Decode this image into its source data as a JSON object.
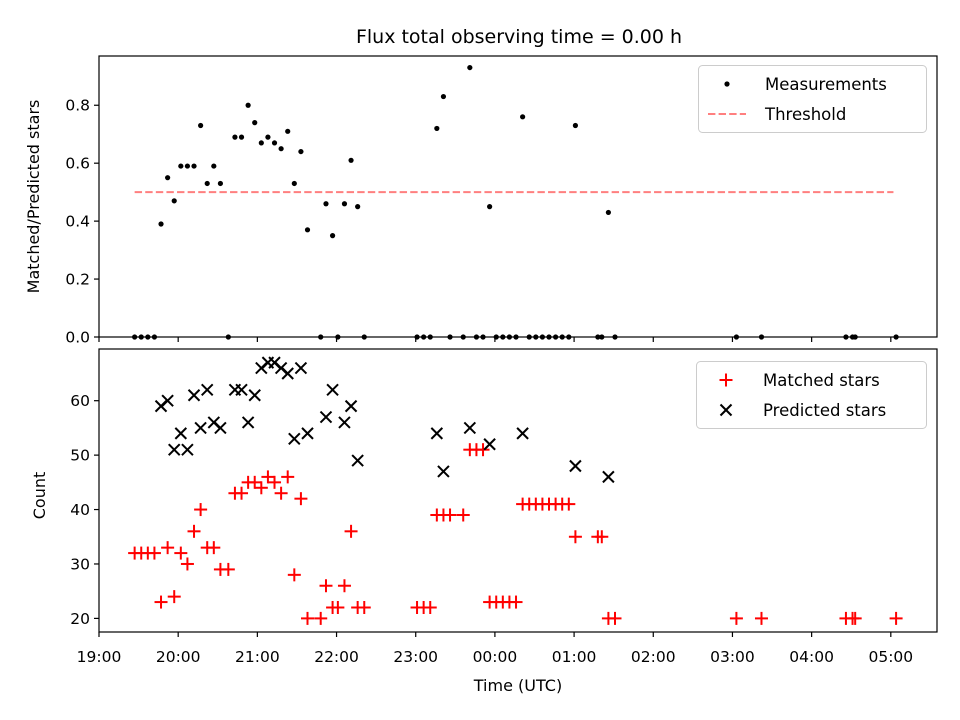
{
  "chart_data": [
    {
      "type": "scatter",
      "title": "Flux total observing time = 0.00 h",
      "ylabel": "Matched/Predicted stars",
      "xlim": [
        "19:00",
        "05:35"
      ],
      "ylim": [
        0,
        0.97
      ],
      "yticks": [
        "0.0",
        "0.2",
        "0.4",
        "0.6",
        "0.8"
      ],
      "legend_position": "top-right",
      "legend": [
        {
          "label": "Measurements",
          "marker": "dot",
          "color": "#000000"
        },
        {
          "label": "Threshold",
          "marker": "dashed-line",
          "color": "#ff7f7f"
        }
      ],
      "threshold": {
        "name": "Threshold",
        "y": 0.5,
        "x_start": "19:27",
        "x_end": "05:02",
        "color": "#ff7f7f",
        "style": "dashed"
      },
      "series": [
        {
          "name": "Measurements",
          "color": "#000000",
          "marker": "dot",
          "points": [
            [
              "19:27",
              0.0
            ],
            [
              "19:32",
              0.0
            ],
            [
              "19:37",
              0.0
            ],
            [
              "19:42",
              0.0
            ],
            [
              "19:47",
              0.39
            ],
            [
              "19:52",
              0.55
            ],
            [
              "19:57",
              0.47
            ],
            [
              "20:02",
              0.59
            ],
            [
              "20:07",
              0.59
            ],
            [
              "20:12",
              0.59
            ],
            [
              "20:17",
              0.73
            ],
            [
              "20:22",
              0.53
            ],
            [
              "20:27",
              0.59
            ],
            [
              "20:32",
              0.53
            ],
            [
              "20:38",
              0.0
            ],
            [
              "20:43",
              0.69
            ],
            [
              "20:48",
              0.69
            ],
            [
              "20:53",
              0.8
            ],
            [
              "20:58",
              0.74
            ],
            [
              "21:03",
              0.67
            ],
            [
              "21:08",
              0.69
            ],
            [
              "21:13",
              0.67
            ],
            [
              "21:18",
              0.65
            ],
            [
              "21:23",
              0.71
            ],
            [
              "21:28",
              0.53
            ],
            [
              "21:33",
              0.64
            ],
            [
              "21:38",
              0.37
            ],
            [
              "21:48",
              0.0
            ],
            [
              "21:52",
              0.46
            ],
            [
              "21:57",
              0.35
            ],
            [
              "22:01",
              0.0
            ],
            [
              "22:06",
              0.46
            ],
            [
              "22:11",
              0.61
            ],
            [
              "22:16",
              0.45
            ],
            [
              "22:21",
              0.0
            ],
            [
              "23:01",
              0.0
            ],
            [
              "23:06",
              0.0
            ],
            [
              "23:11",
              0.0
            ],
            [
              "23:16",
              0.72
            ],
            [
              "23:21",
              0.83
            ],
            [
              "23:26",
              0.0
            ],
            [
              "23:36",
              0.0
            ],
            [
              "23:41",
              0.93
            ],
            [
              "23:46",
              0.0
            ],
            [
              "23:51",
              0.0
            ],
            [
              "23:56",
              0.45
            ],
            [
              "00:01",
              0.0
            ],
            [
              "00:06",
              0.0
            ],
            [
              "00:11",
              0.0
            ],
            [
              "00:16",
              0.0
            ],
            [
              "00:21",
              0.76
            ],
            [
              "00:26",
              0.0
            ],
            [
              "00:31",
              0.0
            ],
            [
              "00:36",
              0.0
            ],
            [
              "00:41",
              0.0
            ],
            [
              "00:46",
              0.0
            ],
            [
              "00:51",
              0.0
            ],
            [
              "00:56",
              0.0
            ],
            [
              "01:01",
              0.73
            ],
            [
              "01:18",
              0.0
            ],
            [
              "01:21",
              0.0
            ],
            [
              "01:26",
              0.43
            ],
            [
              "01:31",
              0.0
            ],
            [
              "03:03",
              0.0
            ],
            [
              "03:22",
              0.0
            ],
            [
              "04:26",
              0.0
            ],
            [
              "04:31",
              0.0
            ],
            [
              "04:33",
              0.0
            ],
            [
              "05:04",
              0.0
            ]
          ]
        }
      ]
    },
    {
      "type": "scatter",
      "xlabel": "Time (UTC)",
      "ylabel": "Count",
      "xlim": [
        "19:00",
        "05:35"
      ],
      "ylim": [
        17.5,
        69.5
      ],
      "xticks": [
        "19:00",
        "20:00",
        "21:00",
        "22:00",
        "23:00",
        "00:00",
        "01:00",
        "02:00",
        "03:00",
        "04:00",
        "05:00"
      ],
      "yticks": [
        "20",
        "30",
        "40",
        "50",
        "60"
      ],
      "legend_position": "top-right",
      "legend": [
        {
          "label": "Matched stars",
          "marker": "plus",
          "color": "#ff0000"
        },
        {
          "label": "Predicted stars",
          "marker": "x",
          "color": "#000000"
        }
      ],
      "series": [
        {
          "name": "Matched stars",
          "color": "#ff0000",
          "marker": "plus",
          "points": [
            [
              "19:27",
              32
            ],
            [
              "19:32",
              32
            ],
            [
              "19:37",
              32
            ],
            [
              "19:42",
              32
            ],
            [
              "19:47",
              23
            ],
            [
              "19:52",
              33
            ],
            [
              "19:57",
              24
            ],
            [
              "20:02",
              32
            ],
            [
              "20:07",
              30
            ],
            [
              "20:12",
              36
            ],
            [
              "20:17",
              40
            ],
            [
              "20:22",
              33
            ],
            [
              "20:27",
              33
            ],
            [
              "20:32",
              29
            ],
            [
              "20:38",
              29
            ],
            [
              "20:43",
              43
            ],
            [
              "20:48",
              43
            ],
            [
              "20:53",
              45
            ],
            [
              "20:58",
              45
            ],
            [
              "21:03",
              44
            ],
            [
              "21:08",
              46
            ],
            [
              "21:13",
              45
            ],
            [
              "21:18",
              43
            ],
            [
              "21:23",
              46
            ],
            [
              "21:28",
              28
            ],
            [
              "21:33",
              42
            ],
            [
              "21:38",
              20
            ],
            [
              "21:48",
              20
            ],
            [
              "21:52",
              26
            ],
            [
              "21:57",
              22
            ],
            [
              "22:01",
              22
            ],
            [
              "22:06",
              26
            ],
            [
              "22:11",
              36
            ],
            [
              "22:16",
              22
            ],
            [
              "22:21",
              22
            ],
            [
              "23:01",
              22
            ],
            [
              "23:06",
              22
            ],
            [
              "23:11",
              22
            ],
            [
              "23:16",
              39
            ],
            [
              "23:21",
              39
            ],
            [
              "23:26",
              39
            ],
            [
              "23:36",
              39
            ],
            [
              "23:41",
              51
            ],
            [
              "23:46",
              51
            ],
            [
              "23:51",
              51
            ],
            [
              "23:56",
              23
            ],
            [
              "00:01",
              23
            ],
            [
              "00:06",
              23
            ],
            [
              "00:11",
              23
            ],
            [
              "00:16",
              23
            ],
            [
              "00:21",
              41
            ],
            [
              "00:26",
              41
            ],
            [
              "00:31",
              41
            ],
            [
              "00:36",
              41
            ],
            [
              "00:41",
              41
            ],
            [
              "00:46",
              41
            ],
            [
              "00:51",
              41
            ],
            [
              "00:56",
              41
            ],
            [
              "01:01",
              35
            ],
            [
              "01:18",
              35
            ],
            [
              "01:21",
              35
            ],
            [
              "01:26",
              20
            ],
            [
              "01:31",
              20
            ],
            [
              "03:03",
              20
            ],
            [
              "03:22",
              20
            ],
            [
              "04:26",
              20
            ],
            [
              "04:31",
              20
            ],
            [
              "04:33",
              20
            ],
            [
              "05:04",
              20
            ]
          ]
        },
        {
          "name": "Predicted stars",
          "color": "#000000",
          "marker": "x",
          "points": [
            [
              "19:47",
              59
            ],
            [
              "19:52",
              60
            ],
            [
              "19:57",
              51
            ],
            [
              "20:02",
              54
            ],
            [
              "20:07",
              51
            ],
            [
              "20:12",
              61
            ],
            [
              "20:17",
              55
            ],
            [
              "20:22",
              62
            ],
            [
              "20:27",
              56
            ],
            [
              "20:32",
              55
            ],
            [
              "20:43",
              62
            ],
            [
              "20:48",
              62
            ],
            [
              "20:53",
              56
            ],
            [
              "20:58",
              61
            ],
            [
              "21:03",
              66
            ],
            [
              "21:08",
              67
            ],
            [
              "21:13",
              67
            ],
            [
              "21:18",
              66
            ],
            [
              "21:23",
              65
            ],
            [
              "21:28",
              53
            ],
            [
              "21:33",
              66
            ],
            [
              "21:38",
              54
            ],
            [
              "21:52",
              57
            ],
            [
              "21:57",
              62
            ],
            [
              "22:06",
              56
            ],
            [
              "22:11",
              59
            ],
            [
              "22:16",
              49
            ],
            [
              "23:16",
              54
            ],
            [
              "23:21",
              47
            ],
            [
              "23:41",
              55
            ],
            [
              "23:56",
              52
            ],
            [
              "00:21",
              54
            ],
            [
              "01:01",
              48
            ],
            [
              "01:26",
              46
            ]
          ]
        }
      ]
    }
  ]
}
